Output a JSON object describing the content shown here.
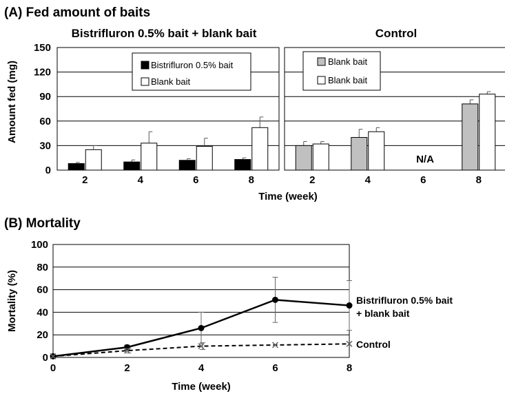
{
  "chart_data": [
    {
      "type": "bar",
      "panel_title": "(A) Fed amount of baits",
      "title": "Bistrifluron 0.5% bait + blank bait",
      "xlabel": "Time (week)",
      "ylabel": "Amount fed (mg)",
      "ylim": [
        0,
        150
      ],
      "yticks": [
        "0",
        "30",
        "60",
        "90",
        "120",
        "150"
      ],
      "categories": [
        "2",
        "4",
        "6",
        "8"
      ],
      "grid": true,
      "legend_position": "top-center",
      "series": [
        {
          "name": "Bistrifluron 0.5% bait",
          "color": "#000000",
          "values": [
            8,
            10,
            12,
            13
          ],
          "errors": [
            1.5,
            2.5,
            2,
            2
          ]
        },
        {
          "name": "Blank bait",
          "color": "#ffffff",
          "values": [
            25,
            33,
            29,
            52
          ],
          "errors": [
            5,
            14,
            10,
            13
          ]
        }
      ]
    },
    {
      "type": "bar",
      "title": "Control",
      "categories": [
        "2",
        "4",
        "6",
        "8"
      ],
      "ylim": [
        0,
        150
      ],
      "grid": true,
      "legend_position": "top-left",
      "annotations": [
        {
          "category": "6",
          "text": "N/A"
        }
      ],
      "series": [
        {
          "name": "Blank bait",
          "color": "#c0c0c0",
          "values": [
            30,
            40,
            null,
            81
          ],
          "errors": [
            5,
            10,
            null,
            5
          ]
        },
        {
          "name": "Blank bait",
          "color": "#ffffff",
          "values": [
            32,
            47,
            null,
            93
          ],
          "errors": [
            3,
            5,
            null,
            3
          ]
        }
      ]
    },
    {
      "type": "line",
      "panel_title": "(B) Mortality",
      "xlabel": "Time (week)",
      "ylabel": "Mortality (%)",
      "x": [
        0,
        2,
        4,
        6,
        8
      ],
      "xlim": [
        0,
        8
      ],
      "ylim": [
        0,
        100
      ],
      "xticks": [
        "0",
        "2",
        "4",
        "6",
        "8"
      ],
      "yticks": [
        "0",
        "20",
        "40",
        "60",
        "80",
        "100"
      ],
      "grid": true,
      "series": [
        {
          "label_lines": [
            "Bistrifluron 0.5% bait",
            "+ blank bait"
          ],
          "style": "solid",
          "marker": "circle",
          "values": [
            1,
            9,
            26,
            51,
            46
          ],
          "errors": [
            0,
            2,
            14,
            20,
            22
          ]
        },
        {
          "label_lines": [
            "Control"
          ],
          "style": "dashed",
          "marker": "x",
          "values": [
            1,
            6,
            10,
            11,
            12
          ],
          "errors": [
            0,
            2,
            3,
            0,
            0
          ]
        }
      ]
    }
  ]
}
